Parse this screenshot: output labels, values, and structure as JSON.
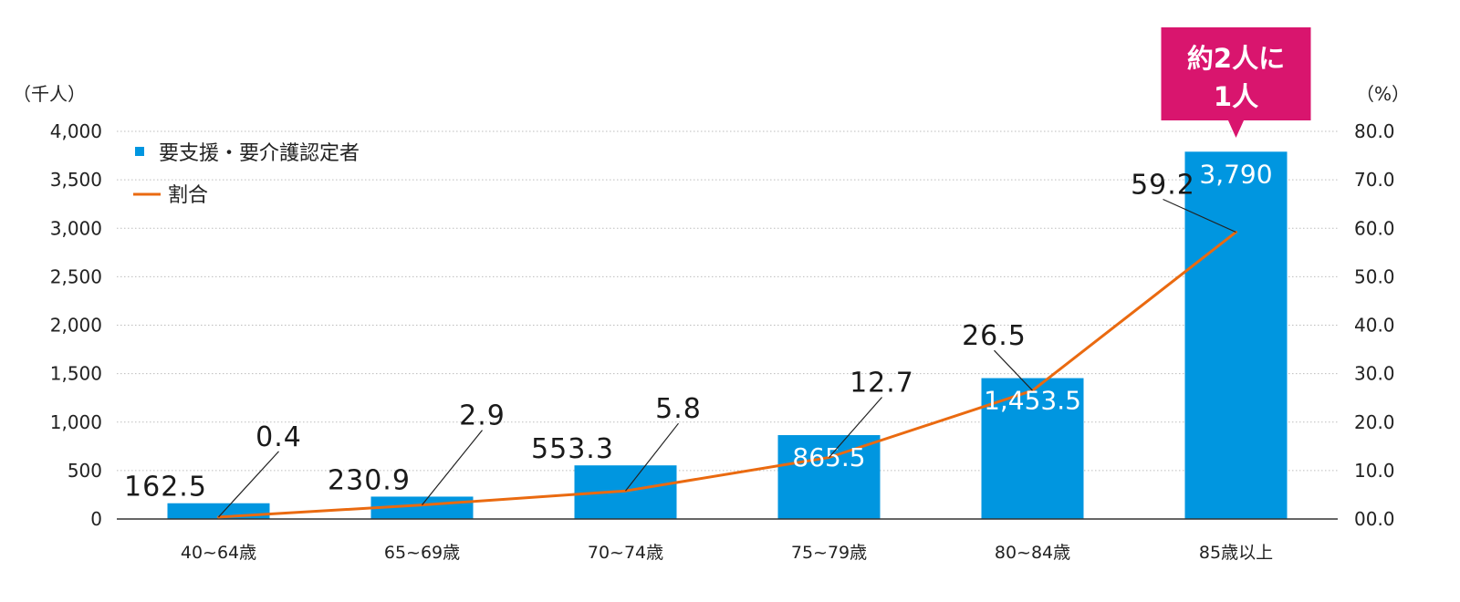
{
  "chart_data": {
    "type": "bar",
    "categories": [
      "40~64歳",
      "65~69歳",
      "70~74歳",
      "75~79歳",
      "80~84歳",
      "85歳以上"
    ],
    "series": [
      {
        "name": "要支援・要介護認定者",
        "type": "bar",
        "axis": "left",
        "color": "#0096e0",
        "values": [
          162.5,
          230.9,
          553.3,
          865.5,
          1453.5,
          3790
        ],
        "value_labels": [
          "162.5",
          "230.9",
          "553.3",
          "865.5",
          "1,453.5",
          "3,790"
        ]
      },
      {
        "name": "割合",
        "type": "line",
        "axis": "right",
        "color": "#ea6a10",
        "values": [
          0.4,
          2.9,
          5.8,
          12.7,
          26.5,
          59.2
        ],
        "value_labels": [
          "0.4",
          "2.9",
          "5.8",
          "12.7",
          "26.5",
          "59.2"
        ]
      }
    ],
    "y_left": {
      "unit_label": "（千人）",
      "ylim": [
        0,
        4000
      ],
      "ticks": [
        "0",
        "500",
        "1,000",
        "1,500",
        "2,000",
        "2,500",
        "3,000",
        "3,500",
        "4,000"
      ]
    },
    "y_right": {
      "unit_label": "（%）",
      "ylim": [
        0,
        80
      ],
      "ticks": [
        "00.0",
        "10.0",
        "20.0",
        "30.0",
        "40.0",
        "50.0",
        "60.0",
        "70.0",
        "80.0"
      ]
    },
    "grid": true,
    "legend_position": "top-left",
    "callout": {
      "lines": [
        "約2人に",
        "1人"
      ],
      "color": "#d9156e",
      "category_index": 5
    }
  }
}
